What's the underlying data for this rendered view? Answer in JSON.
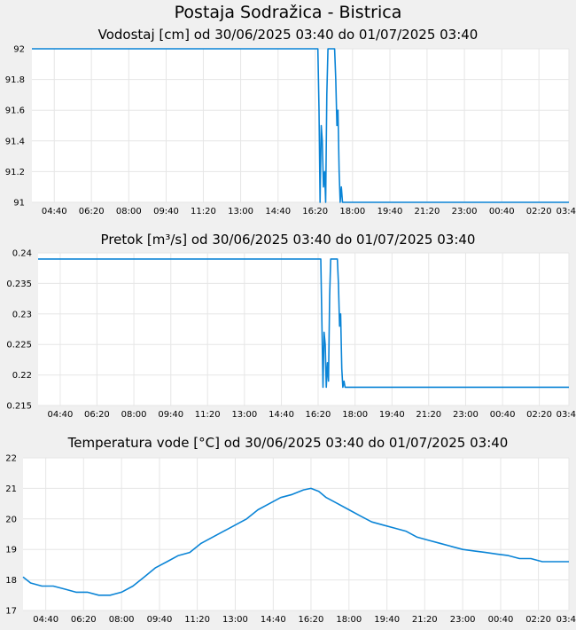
{
  "page_title": "Postaja Sodražica - Bistrica",
  "chart_data": [
    {
      "type": "line",
      "title": "Vodostaj [cm] od 30/06/2025 03:40 do 01/07/2025 03:40",
      "xlabel": "",
      "ylabel": "",
      "x_ticks": [
        "04:40",
        "06:20",
        "08:00",
        "09:40",
        "11:20",
        "13:00",
        "14:40",
        "16:20",
        "18:00",
        "19:40",
        "21:20",
        "23:00",
        "00:40",
        "02:20",
        "03:40"
      ],
      "y_ticks": [
        "91",
        "91.2",
        "91.4",
        "91.6",
        "91.8",
        "92"
      ],
      "ylim": [
        91,
        92
      ],
      "xlim_hours": [
        3.67,
        27.67
      ],
      "grid": true,
      "color": "#0a84d6",
      "series": [
        {
          "x": [
            3.67,
            16.45,
            16.5,
            16.55,
            16.6,
            16.65,
            16.7,
            16.75,
            16.8,
            16.85,
            16.9,
            16.95,
            17.0,
            17.05,
            17.1,
            17.15,
            17.2,
            17.25,
            17.3,
            17.35,
            17.4,
            17.45,
            17.5,
            17.55,
            27.67
          ],
          "values": [
            92,
            92,
            91.6,
            91.0,
            91.5,
            91.4,
            91.1,
            91.2,
            91.0,
            91.7,
            92,
            92,
            92,
            92,
            92,
            92,
            92,
            91.8,
            91.5,
            91.6,
            91.2,
            91.0,
            91.1,
            91,
            91
          ]
        }
      ]
    },
    {
      "type": "line",
      "title": "Pretok [m³/s] od 30/06/2025 03:40 do 01/07/2025 03:40",
      "xlabel": "",
      "ylabel": "",
      "x_ticks": [
        "04:40",
        "06:20",
        "08:00",
        "09:40",
        "11:20",
        "13:00",
        "14:40",
        "16:20",
        "18:00",
        "19:40",
        "21:20",
        "23:00",
        "00:40",
        "02:20",
        "03:40"
      ],
      "y_ticks": [
        "0.215",
        "0.22",
        "0.225",
        "0.23",
        "0.235",
        "0.24"
      ],
      "ylim": [
        0.215,
        0.24
      ],
      "xlim_hours": [
        3.67,
        27.67
      ],
      "grid": true,
      "color": "#0a84d6",
      "series": [
        {
          "x": [
            3.67,
            16.45,
            16.5,
            16.55,
            16.6,
            16.65,
            16.7,
            16.75,
            16.8,
            16.85,
            16.9,
            16.95,
            17.0,
            17.05,
            17.1,
            17.15,
            17.2,
            17.25,
            17.3,
            17.35,
            17.4,
            17.45,
            17.5,
            17.55,
            27.67
          ],
          "values": [
            0.239,
            0.239,
            0.229,
            0.218,
            0.227,
            0.225,
            0.218,
            0.222,
            0.219,
            0.233,
            0.239,
            0.239,
            0.239,
            0.239,
            0.239,
            0.239,
            0.239,
            0.235,
            0.228,
            0.23,
            0.221,
            0.218,
            0.219,
            0.218,
            0.218
          ]
        }
      ]
    },
    {
      "type": "line",
      "title": "Temperatura vode [°C] od 30/06/2025 03:40 do 01/07/2025 03:40",
      "xlabel": "",
      "ylabel": "",
      "x_ticks": [
        "04:40",
        "06:20",
        "08:00",
        "09:40",
        "11:20",
        "13:00",
        "14:40",
        "16:20",
        "18:00",
        "19:40",
        "21:20",
        "23:00",
        "00:40",
        "02:20",
        "03:40"
      ],
      "y_ticks": [
        "17",
        "18",
        "19",
        "20",
        "21",
        "22"
      ],
      "ylim": [
        17,
        22
      ],
      "xlim_hours": [
        3.67,
        27.67
      ],
      "grid": true,
      "color": "#0a84d6",
      "series": [
        {
          "x": [
            3.67,
            4.0,
            4.5,
            5.0,
            5.5,
            6.0,
            6.5,
            7.0,
            7.5,
            8.0,
            8.5,
            9.0,
            9.5,
            10.0,
            10.5,
            11.0,
            11.5,
            12.0,
            12.5,
            13.0,
            13.5,
            14.0,
            14.5,
            15.0,
            15.5,
            16.0,
            16.33,
            16.67,
            17.0,
            17.5,
            18.0,
            18.5,
            19.0,
            19.5,
            20.0,
            20.5,
            21.0,
            21.5,
            22.0,
            22.5,
            23.0,
            23.5,
            24.0,
            24.5,
            25.0,
            25.5,
            26.0,
            26.5,
            27.0,
            27.67
          ],
          "values": [
            18.1,
            17.9,
            17.8,
            17.8,
            17.7,
            17.6,
            17.6,
            17.5,
            17.5,
            17.6,
            17.8,
            18.1,
            18.4,
            18.6,
            18.8,
            18.9,
            19.2,
            19.4,
            19.6,
            19.8,
            20.0,
            20.3,
            20.5,
            20.7,
            20.8,
            20.95,
            21.0,
            20.9,
            20.7,
            20.5,
            20.3,
            20.1,
            19.9,
            19.8,
            19.7,
            19.6,
            19.4,
            19.3,
            19.2,
            19.1,
            19.0,
            18.95,
            18.9,
            18.85,
            18.8,
            18.7,
            18.7,
            18.6,
            18.6,
            18.6
          ]
        }
      ]
    }
  ]
}
